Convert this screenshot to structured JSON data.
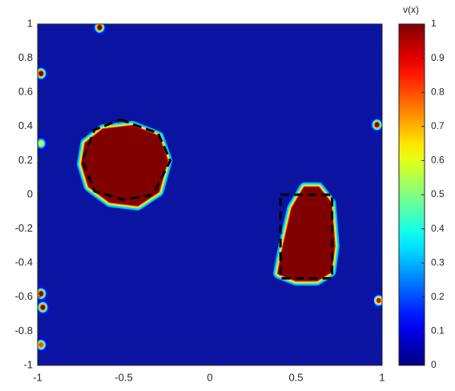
{
  "chart_data": {
    "type": "heatmap",
    "colorbar_label": "v(x)",
    "colormap": "jet",
    "background_color": "#0a14a0",
    "xlim": [
      -1,
      1
    ],
    "ylim": [
      -1,
      1
    ],
    "xticks": [
      -1,
      -0.5,
      0,
      0.5,
      1
    ],
    "yticks": [
      -1,
      -0.8,
      -0.6,
      -0.4,
      -0.2,
      0,
      0.2,
      0.4,
      0.6,
      0.8,
      1
    ],
    "clim": [
      0,
      1
    ],
    "cticks": [
      0,
      0.1,
      0.2,
      0.3,
      0.4,
      0.5,
      0.6,
      0.7,
      0.8,
      0.9,
      1
    ],
    "regions": [
      {
        "value": 1,
        "x": [
          -0.72,
          -0.62,
          -0.45,
          -0.3,
          -0.25,
          -0.3,
          -0.42,
          -0.58,
          -0.7,
          -0.74
        ],
        "y": [
          0.3,
          0.38,
          0.4,
          0.34,
          0.2,
          0.02,
          -0.06,
          -0.04,
          0.05,
          0.18
        ]
      },
      {
        "value": 1,
        "x": [
          0.4,
          0.43,
          0.48,
          0.55,
          0.63,
          0.7,
          0.72,
          0.7,
          0.62,
          0.5
        ],
        "y": [
          -0.46,
          -0.3,
          -0.08,
          0.04,
          0.04,
          -0.05,
          -0.3,
          -0.45,
          -0.5,
          -0.5
        ]
      }
    ],
    "outlines": [
      {
        "x": [
          -0.52,
          -0.3,
          -0.23,
          -0.33,
          -0.5,
          -0.67,
          -0.74,
          -0.67,
          -0.52
        ],
        "y": [
          0.44,
          0.36,
          0.2,
          0.0,
          -0.03,
          0.02,
          0.2,
          0.38,
          0.44
        ]
      },
      {
        "x": [
          0.41,
          0.71,
          0.71,
          0.41,
          0.41
        ],
        "y": [
          0.0,
          0.0,
          -0.49,
          -0.49,
          0.0
        ]
      }
    ],
    "spots": [
      {
        "x": -0.64,
        "y": 0.98,
        "value": 1
      },
      {
        "x": -0.98,
        "y": 0.71,
        "value": 1
      },
      {
        "x": -0.98,
        "y": 0.3,
        "value": 0.6
      },
      {
        "x": -0.98,
        "y": -0.58,
        "value": 1
      },
      {
        "x": -0.97,
        "y": -0.66,
        "value": 1
      },
      {
        "x": -0.98,
        "y": -0.88,
        "value": 0.8
      },
      {
        "x": 0.97,
        "y": 0.41,
        "value": 1
      },
      {
        "x": 0.98,
        "y": -0.62,
        "value": 0.9
      }
    ]
  }
}
